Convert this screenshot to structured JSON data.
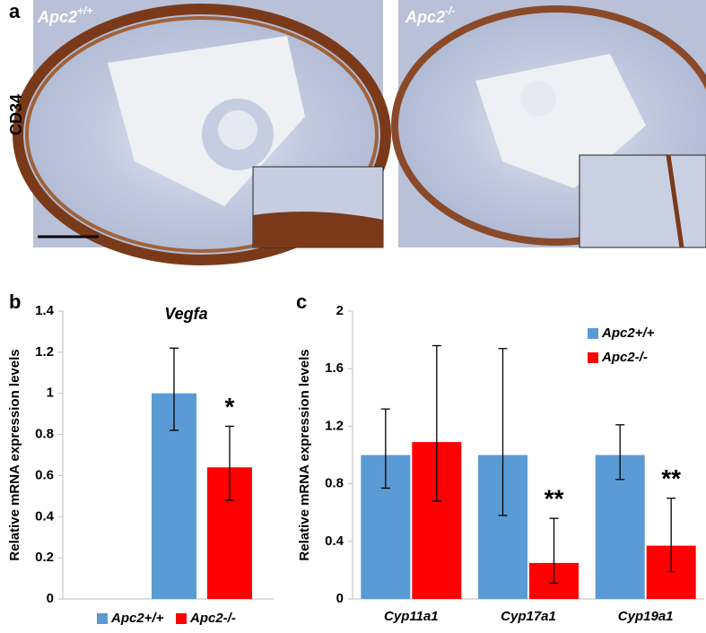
{
  "panel_labels": [
    "a",
    "b",
    "c"
  ],
  "row_label": "CD34",
  "images": [
    {
      "label": "Apc2",
      "label_sup": "+/+"
    },
    {
      "label": "Apc2",
      "label_sup": "-/-"
    }
  ],
  "chart_data": [
    {
      "type": "bar",
      "title": "Vegfa",
      "y_label": "Relative mRNA expression levels",
      "categories": [
        null
      ],
      "series": [
        {
          "name": "Apc2+/+",
          "color": "#5b9bd5",
          "values": [
            1
          ],
          "err_plus": [
            0.22
          ],
          "err_minus": [
            0.18
          ],
          "annotations": [
            null
          ]
        },
        {
          "name": "Apc2-/-",
          "color": "#ff0000",
          "values": [
            0.64
          ],
          "err_plus": [
            0.2
          ],
          "err_minus": [
            0.16
          ],
          "annotations": [
            "*"
          ]
        }
      ],
      "ylim": [
        0,
        1.4
      ],
      "yticks": [
        0,
        0.2,
        0.4,
        0.6,
        0.8,
        1,
        1.2,
        1.4
      ],
      "legend": "bottom"
    },
    {
      "type": "bar",
      "y_label": "Relative mRNA expression levels",
      "categories": [
        "Cyp11a1",
        "Cyp17a1",
        "Cyp19a1"
      ],
      "series": [
        {
          "name": "Apc2+/+",
          "color": "#5b9bd5",
          "values": [
            1,
            1,
            1
          ],
          "err_plus": [
            0.32,
            0.74,
            0.21
          ],
          "err_minus": [
            0.23,
            0.42,
            0.17
          ],
          "annotations": [
            null,
            null,
            null
          ]
        },
        {
          "name": "Apc2-/-",
          "color": "#ff0000",
          "values": [
            1.09,
            0.25,
            0.37
          ],
          "err_plus": [
            0.67,
            0.31,
            0.33
          ],
          "err_minus": [
            0.41,
            0.14,
            0.18
          ],
          "annotations": [
            null,
            "**",
            "**"
          ]
        }
      ],
      "ylim": [
        0,
        2
      ],
      "yticks": [
        0,
        0.4,
        0.8,
        1.2,
        1.6,
        2
      ],
      "legend": "upper right"
    }
  ]
}
